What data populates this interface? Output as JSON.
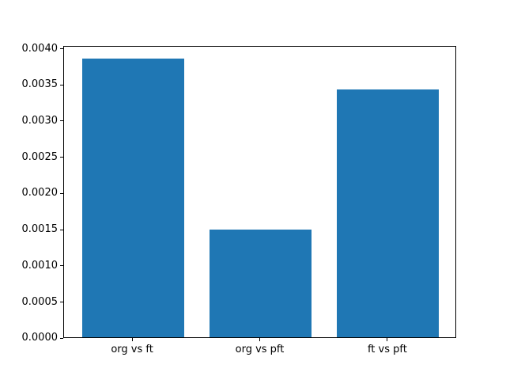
{
  "figure": {
    "background": "#ffffff",
    "frame_color": "#000000",
    "text_color": "#000000"
  },
  "chart_data": {
    "type": "bar",
    "title": "",
    "xlabel": "",
    "ylabel": "",
    "categories": [
      "org vs ft",
      "org vs pft",
      "ft vs pft"
    ],
    "values": [
      0.00385,
      0.00149,
      0.00343
    ],
    "bar_color": "#1f77b4",
    "bar_width_fraction": 0.8,
    "ylim": [
      0,
      0.0040425
    ],
    "ytick_values": [
      0.0,
      0.0005,
      0.001,
      0.0015,
      0.002,
      0.0025,
      0.003,
      0.0035,
      0.004
    ],
    "ytick_labels": [
      "0.0000",
      "0.0005",
      "0.0010",
      "0.0015",
      "0.0020",
      "0.0025",
      "0.0030",
      "0.0035",
      "0.0040"
    ],
    "grid": false,
    "legend": null
  }
}
